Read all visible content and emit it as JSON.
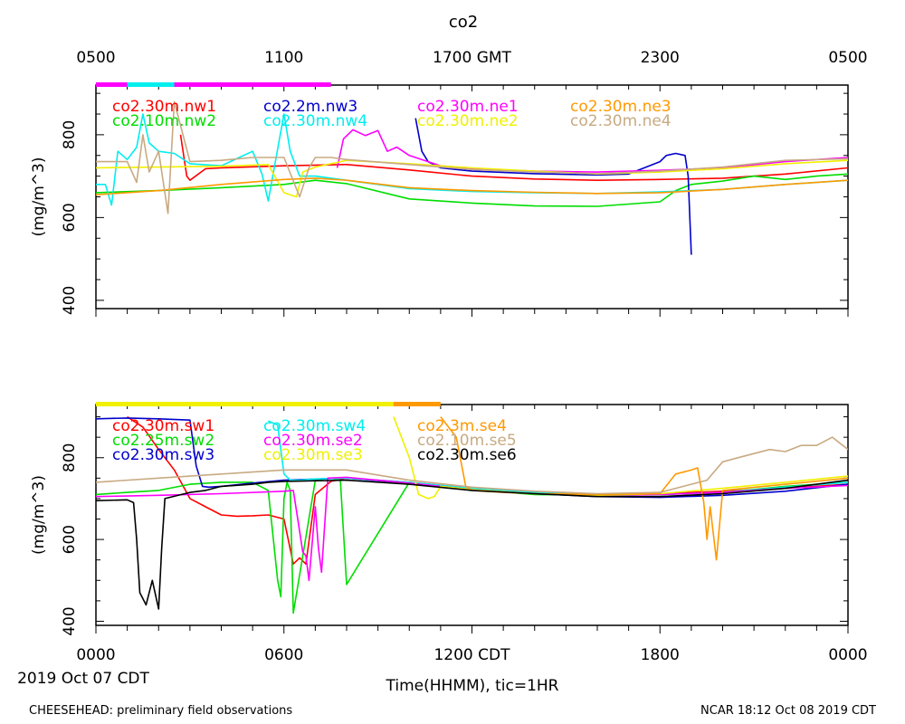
{
  "title": "co2",
  "top_axis": {
    "ticks": [
      {
        "x": 0,
        "label": "0500"
      },
      {
        "x": 6,
        "label": "1100"
      },
      {
        "x": 12,
        "label": "1700 GMT"
      },
      {
        "x": 18,
        "label": "2300"
      },
      {
        "x": 24,
        "label": "0500"
      }
    ]
  },
  "bottom_axis": {
    "ticks": [
      {
        "x": 0,
        "label": "0000"
      },
      {
        "x": 6,
        "label": "0600"
      },
      {
        "x": 12,
        "label": "1200 CDT"
      },
      {
        "x": 18,
        "label": "1800"
      },
      {
        "x": 24,
        "label": "0000"
      }
    ],
    "date_label": "2019 Oct 07 CDT",
    "xlabel": "Time(HHMM), tic=1HR"
  },
  "footer": {
    "left": "CHEESEHEAD: preliminary field observations",
    "right": "NCAR 18:12 Oct 08 2019 CDT"
  },
  "chart_data": [
    {
      "type": "line",
      "ylabel": "(mg/m^3)",
      "ylim": [
        380,
        920
      ],
      "yticks": [
        400,
        600,
        800
      ],
      "xlim": [
        0,
        24
      ],
      "series": [
        {
          "name": "co2.30m.nw1",
          "color": "#ff0000",
          "x": [
            2.7,
            2.9,
            3.0,
            3.5,
            4,
            6,
            8,
            10,
            12,
            14,
            16,
            18,
            20,
            22,
            24
          ],
          "y": [
            800,
            700,
            690,
            718,
            720,
            725,
            728,
            715,
            700,
            693,
            690,
            692,
            695,
            705,
            720
          ]
        },
        {
          "name": "co2.10m.nw2",
          "color": "#00dd00",
          "x": [
            0,
            2,
            4,
            6,
            7,
            8,
            10,
            12,
            14,
            16,
            18,
            18.5,
            19,
            20,
            21,
            22,
            23,
            24
          ],
          "y": [
            660,
            665,
            672,
            680,
            690,
            682,
            645,
            635,
            628,
            627,
            638,
            665,
            680,
            688,
            700,
            692,
            700,
            705
          ]
        },
        {
          "name": "co2.2m.nw3",
          "color": "#0000cc",
          "x": [
            10.2,
            10.4,
            10.6,
            11,
            12,
            14,
            16,
            17,
            18,
            18.2,
            18.5,
            18.8,
            18.9,
            19.0
          ],
          "y": [
            840,
            760,
            735,
            720,
            712,
            706,
            703,
            705,
            735,
            750,
            755,
            750,
            700,
            510
          ]
        },
        {
          "name": "co2.30m.nw4",
          "color": "#00eeee",
          "x": [
            0,
            0.3,
            0.5,
            0.7,
            1,
            1.3,
            1.5,
            1.7,
            2,
            2.5,
            3,
            4,
            5,
            5.3,
            5.5,
            6,
            6.2,
            6.5,
            7,
            8,
            10,
            12,
            14,
            16,
            18,
            20,
            22,
            24
          ],
          "y": [
            680,
            680,
            630,
            760,
            740,
            770,
            850,
            780,
            760,
            755,
            730,
            725,
            760,
            705,
            640,
            850,
            760,
            700,
            700,
            690,
            670,
            663,
            660,
            658,
            662,
            668,
            680,
            690
          ]
        },
        {
          "name": "co2.30m.ne1",
          "color": "#ff00ff",
          "x": [
            7.7,
            7.9,
            8.2,
            8.6,
            9,
            9.3,
            9.6,
            10,
            11,
            12,
            14,
            16,
            18,
            20,
            22,
            24
          ],
          "y": [
            720,
            790,
            812,
            798,
            810,
            760,
            770,
            750,
            725,
            718,
            712,
            710,
            714,
            720,
            735,
            745
          ]
        },
        {
          "name": "co2.30m.ne2",
          "color": "#f0f000",
          "x": [
            0,
            2,
            4,
            5.5,
            6,
            6.4,
            6.6,
            7,
            8,
            10,
            12,
            14,
            16,
            18,
            20,
            22,
            24
          ],
          "y": [
            720,
            722,
            724,
            728,
            660,
            650,
            710,
            722,
            738,
            730,
            720,
            712,
            705,
            710,
            718,
            730,
            738
          ]
        },
        {
          "name": "co2.30m.ne3",
          "color": "#ff9900",
          "x": [
            0,
            2,
            4,
            6,
            7,
            8,
            10,
            12,
            14,
            16,
            18,
            20,
            22,
            24
          ],
          "y": [
            655,
            665,
            680,
            692,
            695,
            690,
            672,
            665,
            661,
            658,
            660,
            668,
            680,
            690
          ]
        },
        {
          "name": "co2.30m.ne4",
          "color": "#c8aa82",
          "x": [
            0,
            1,
            1.3,
            1.5,
            1.7,
            2,
            2.3,
            2.5,
            3,
            4,
            5,
            6,
            6.5,
            6.8,
            7,
            7.5,
            8,
            10,
            12,
            14,
            16,
            18,
            20,
            22,
            24
          ],
          "y": [
            735,
            735,
            685,
            800,
            710,
            760,
            610,
            880,
            735,
            738,
            745,
            745,
            650,
            720,
            745,
            745,
            740,
            728,
            716,
            710,
            706,
            712,
            722,
            738,
            742
          ]
        }
      ]
    },
    {
      "type": "line",
      "ylabel": "(mg/m^3)",
      "ylim": [
        390,
        930
      ],
      "yticks": [
        400,
        600,
        800
      ],
      "xlim": [
        0,
        24
      ],
      "series": [
        {
          "name": "co2.30m.sw1",
          "color": "#ff0000",
          "x": [
            1,
            1.5,
            2,
            2.5,
            3,
            3.5,
            4,
            4.5,
            5,
            5.5,
            6,
            6.3,
            6.5,
            6.7,
            7,
            7.5,
            8,
            10,
            12,
            14,
            16,
            18,
            20,
            22,
            24
          ],
          "y": [
            900,
            875,
            820,
            770,
            700,
            680,
            660,
            657,
            658,
            660,
            650,
            540,
            555,
            540,
            710,
            742,
            750,
            740,
            725,
            715,
            710,
            712,
            718,
            725,
            735
          ]
        },
        {
          "name": "co2.25m.sw2",
          "color": "#00dd00",
          "x": [
            0,
            1,
            2,
            3,
            4,
            5,
            5.5,
            5.8,
            5.9,
            6,
            6.1,
            6.2,
            6.3,
            7,
            7.5,
            7.8,
            8,
            10,
            12,
            14,
            16,
            18,
            20,
            22,
            24
          ],
          "y": [
            710,
            715,
            720,
            735,
            740,
            740,
            720,
            500,
            460,
            700,
            740,
            720,
            420,
            745,
            750,
            745,
            490,
            740,
            722,
            710,
            708,
            710,
            715,
            730,
            740
          ]
        },
        {
          "name": "co2.30m.sw3",
          "color": "#0000cc",
          "x": [
            0,
            1,
            2,
            3,
            3.2,
            3.4,
            3.6,
            4,
            5,
            6,
            8,
            10,
            12,
            14,
            16,
            18,
            20,
            22,
            24
          ],
          "y": [
            895,
            897,
            895,
            892,
            780,
            730,
            728,
            730,
            738,
            745,
            750,
            738,
            725,
            712,
            705,
            703,
            708,
            718,
            735
          ]
        },
        {
          "name": "co2.30m.sw4",
          "color": "#00eeee",
          "x": [
            5.5,
            5.8,
            6,
            6.2,
            6.5,
            7,
            8,
            10,
            12,
            14,
            16,
            18,
            20,
            22,
            24
          ],
          "y": [
            890,
            880,
            760,
            745,
            745,
            748,
            750,
            740,
            725,
            715,
            708,
            710,
            715,
            728,
            740
          ]
        },
        {
          "name": "co2.30m.se2",
          "color": "#ff00ff",
          "x": [
            0,
            2,
            4,
            6,
            6.3,
            6.5,
            6.6,
            6.7,
            6.8,
            7,
            7.1,
            7.2,
            7.4,
            8,
            10,
            12,
            14,
            16,
            18,
            20,
            22,
            24
          ],
          "y": [
            705,
            708,
            712,
            718,
            720,
            620,
            570,
            560,
            500,
            680,
            580,
            520,
            750,
            752,
            738,
            722,
            712,
            708,
            710,
            715,
            725,
            732
          ]
        },
        {
          "name": "co2.30m.se3",
          "color": "#f0f000",
          "x": [
            9.5,
            10,
            10.3,
            10.6,
            10.8,
            11,
            12,
            14,
            16,
            18,
            20,
            22,
            24
          ],
          "y": [
            900,
            800,
            710,
            700,
            705,
            730,
            722,
            712,
            708,
            712,
            725,
            740,
            755
          ]
        },
        {
          "name": "co2.3m.se4",
          "color": "#ff9900",
          "x": [
            11,
            11.5,
            11.8,
            12,
            13,
            14,
            16,
            18,
            18.5,
            19,
            19.2,
            19.4,
            19.5,
            19.6,
            19.8,
            20,
            22,
            24
          ],
          "y": [
            900,
            850,
            730,
            720,
            715,
            712,
            710,
            712,
            760,
            770,
            775,
            690,
            600,
            680,
            550,
            720,
            735,
            750
          ]
        },
        {
          "name": "co2.10m.se5",
          "color": "#c8aa82",
          "x": [
            0,
            2,
            4,
            6,
            8,
            10,
            12,
            14,
            16,
            18,
            19,
            19.5,
            20,
            20.5,
            21,
            21.5,
            22,
            22.5,
            23,
            23.5,
            24
          ],
          "y": [
            740,
            750,
            760,
            770,
            770,
            745,
            728,
            718,
            712,
            715,
            735,
            745,
            790,
            800,
            810,
            820,
            815,
            830,
            830,
            850,
            820
          ]
        },
        {
          "name": "co2.30m.se6",
          "color": "#000000",
          "x": [
            0,
            1,
            1.2,
            1.3,
            1.4,
            1.6,
            1.8,
            2,
            2.1,
            2.2,
            3,
            3.5,
            4,
            5,
            5.5,
            6,
            8,
            10,
            12,
            14,
            16,
            18,
            20,
            22,
            24
          ],
          "y": [
            695,
            697,
            690,
            600,
            470,
            440,
            500,
            430,
            580,
            700,
            715,
            720,
            730,
            735,
            740,
            742,
            745,
            735,
            720,
            712,
            705,
            705,
            712,
            725,
            745
          ]
        }
      ]
    }
  ],
  "legend_layout_note": ""
}
